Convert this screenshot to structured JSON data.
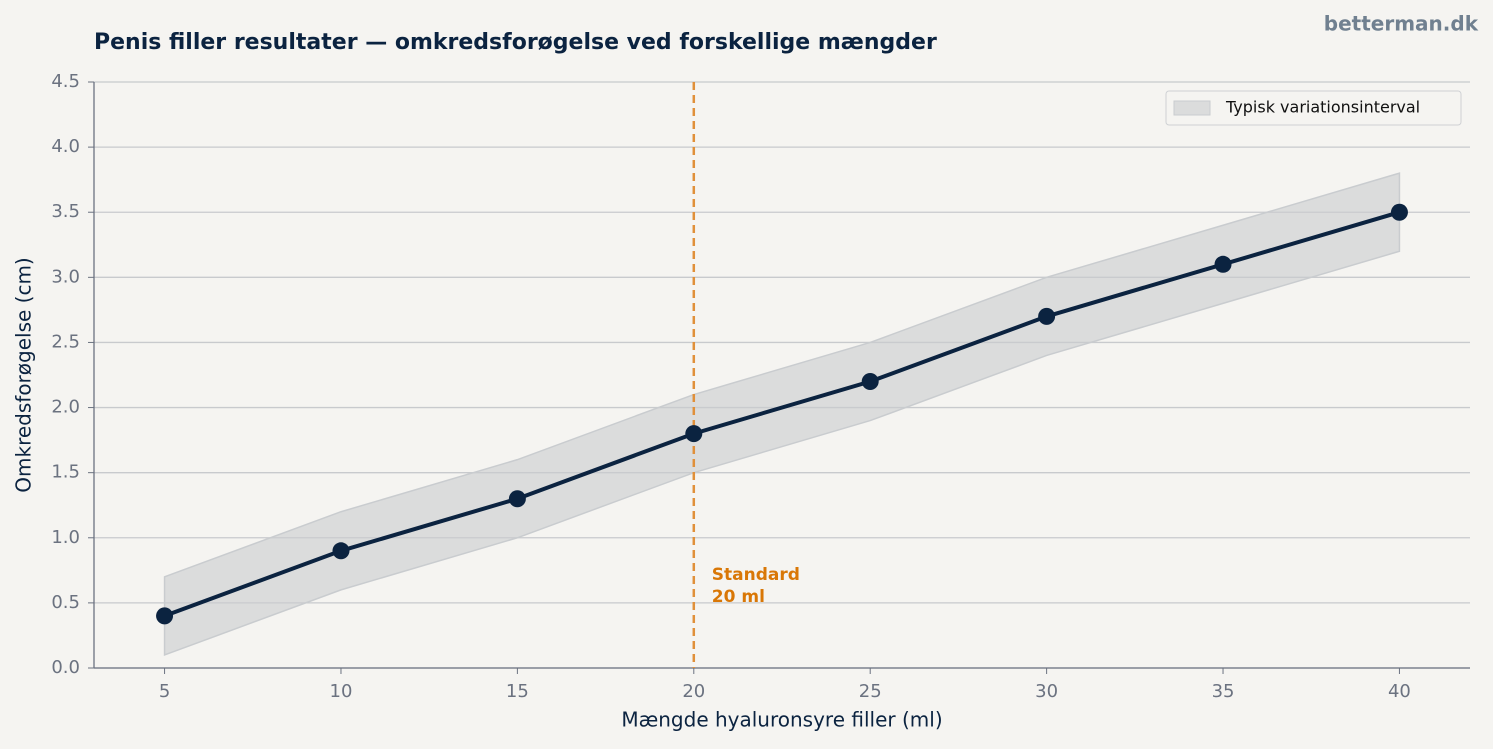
{
  "chart_data": {
    "type": "line",
    "title": "Penis filler resultater — omkredsforøgelse ved forskellige mængder",
    "watermark": "betterman.dk",
    "x_label": "Mængde hyaluronsyre filler (ml)",
    "y_label": "Omkredsforøgelse (cm)",
    "x": [
      5,
      10,
      15,
      20,
      25,
      30,
      35,
      40
    ],
    "series": [
      {
        "color": "#0b2340",
        "values": [
          0.4,
          0.9,
          1.3,
          1.8,
          2.2,
          2.7,
          3.1,
          3.5
        ]
      }
    ],
    "band": {
      "name": "Typisk variationsinterval",
      "color": "#c9cccf",
      "lower": [
        0.1,
        0.6,
        1.0,
        1.5,
        1.9,
        2.4,
        2.8,
        3.2
      ],
      "upper": [
        0.7,
        1.2,
        1.6,
        2.1,
        2.5,
        3.0,
        3.4,
        3.8
      ]
    },
    "reference_line": {
      "x": 20,
      "color": "#e0903a",
      "text": [
        "Standard",
        "20 ml"
      ],
      "text_color": "#d97706"
    },
    "xlim": [
      3,
      42
    ],
    "xticks": [
      5,
      10,
      15,
      20,
      25,
      30,
      35,
      40
    ],
    "ylim": [
      0,
      4.5
    ],
    "yticks": [
      {
        "value": 0,
        "label": "0.0"
      },
      0.5,
      {
        "value": 1,
        "label": "1.0"
      },
      1.5,
      {
        "value": 2,
        "label": "2.0"
      },
      2.5,
      {
        "value": 3,
        "label": "3.0"
      },
      3.5,
      {
        "value": 4,
        "label": "4.0"
      },
      4.5
    ],
    "grid": true,
    "legend": "upper right"
  }
}
